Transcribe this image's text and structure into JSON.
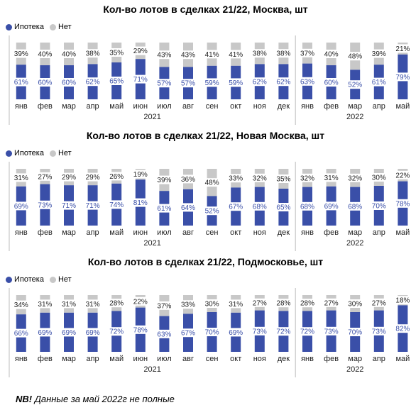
{
  "colors": {
    "mortgage": "#3a4fa8",
    "other": "#c8c8c8"
  },
  "legend": {
    "mortgage": "Ипотека",
    "other": "Нет"
  },
  "footnote": {
    "bold": "NB!",
    "text": " Данные за май 2022г не полные"
  },
  "chart_data": [
    {
      "type": "bar",
      "stacked": true,
      "normalized": true,
      "title": "Кол-во лотов в сделках 21/22, Москва, шт",
      "categories": [
        "янв",
        "фев",
        "мар",
        "апр",
        "май",
        "июн",
        "июл",
        "авг",
        "сен",
        "окт",
        "ноя",
        "дек",
        "янв",
        "фев",
        "мар",
        "апр",
        "май"
      ],
      "year_labels": [
        "2021",
        "2022"
      ],
      "series": [
        {
          "name": "Ипотека",
          "values": [
            61,
            60,
            60,
            62,
            65,
            71,
            57,
            57,
            59,
            59,
            62,
            62,
            63,
            60,
            52,
            61,
            79
          ]
        },
        {
          "name": "Нет",
          "values": [
            39,
            40,
            40,
            38,
            35,
            29,
            43,
            43,
            41,
            41,
            38,
            38,
            37,
            40,
            48,
            39,
            21
          ]
        }
      ],
      "ylim": [
        0,
        100
      ],
      "legend_position": "top-left"
    },
    {
      "type": "bar",
      "stacked": true,
      "normalized": true,
      "title": "Кол-во лотов в сделках 21/22, Новая Москва, шт",
      "categories": [
        "янв",
        "фев",
        "мар",
        "апр",
        "май",
        "июн",
        "июл",
        "авг",
        "сен",
        "окт",
        "ноя",
        "дек",
        "янв",
        "фев",
        "мар",
        "апр",
        "май"
      ],
      "year_labels": [
        "2021",
        "2022"
      ],
      "series": [
        {
          "name": "Ипотека",
          "values": [
            69,
            73,
            71,
            71,
            74,
            81,
            61,
            64,
            52,
            67,
            68,
            65,
            68,
            69,
            68,
            70,
            78
          ]
        },
        {
          "name": "Нет",
          "values": [
            31,
            27,
            29,
            29,
            26,
            19,
            39,
            36,
            48,
            33,
            32,
            35,
            32,
            31,
            32,
            30,
            22
          ]
        }
      ],
      "ylim": [
        0,
        100
      ],
      "legend_position": "top-left"
    },
    {
      "type": "bar",
      "stacked": true,
      "normalized": true,
      "title": "Кол-во лотов в сделках 21/22, Подмосковье, шт",
      "categories": [
        "янв",
        "фев",
        "мар",
        "апр",
        "май",
        "июн",
        "июл",
        "авг",
        "сен",
        "окт",
        "ноя",
        "дек",
        "янв",
        "фев",
        "мар",
        "апр",
        "май"
      ],
      "year_labels": [
        "2021",
        "2022"
      ],
      "series": [
        {
          "name": "Ипотека",
          "values": [
            66,
            69,
            69,
            69,
            72,
            78,
            63,
            67,
            70,
            69,
            73,
            72,
            72,
            73,
            70,
            73,
            82
          ]
        },
        {
          "name": "Нет",
          "values": [
            34,
            31,
            31,
            31,
            28,
            22,
            37,
            33,
            30,
            31,
            27,
            28,
            28,
            27,
            30,
            27,
            18
          ]
        }
      ],
      "ylim": [
        0,
        100
      ],
      "legend_position": "top-left"
    }
  ]
}
